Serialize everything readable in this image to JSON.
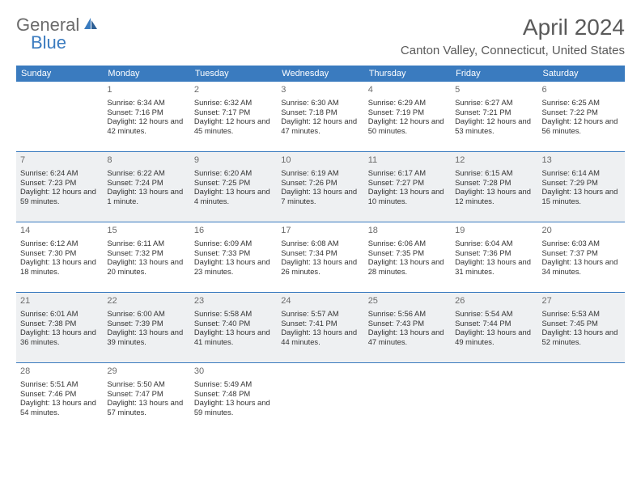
{
  "logo": {
    "part1": "General",
    "part2": "Blue"
  },
  "title": "April 2024",
  "location": "Canton Valley, Connecticut, United States",
  "colors": {
    "header_bg": "#3a7bbf",
    "header_text": "#ffffff",
    "shaded_bg": "#eef0f2",
    "border": "#3a7bbf",
    "body_text": "#333333",
    "title_text": "#5a5a5a",
    "logo_gray": "#6b6b6b",
    "logo_blue": "#3a7bbf"
  },
  "day_names": [
    "Sunday",
    "Monday",
    "Tuesday",
    "Wednesday",
    "Thursday",
    "Friday",
    "Saturday"
  ],
  "calendar_layout": {
    "weeks": 5,
    "first_weekday_index": 1,
    "days_in_month": 30
  },
  "days": {
    "1": {
      "sunrise": "6:34 AM",
      "sunset": "7:16 PM",
      "daylight": "12 hours and 42 minutes."
    },
    "2": {
      "sunrise": "6:32 AM",
      "sunset": "7:17 PM",
      "daylight": "12 hours and 45 minutes."
    },
    "3": {
      "sunrise": "6:30 AM",
      "sunset": "7:18 PM",
      "daylight": "12 hours and 47 minutes."
    },
    "4": {
      "sunrise": "6:29 AM",
      "sunset": "7:19 PM",
      "daylight": "12 hours and 50 minutes."
    },
    "5": {
      "sunrise": "6:27 AM",
      "sunset": "7:21 PM",
      "daylight": "12 hours and 53 minutes."
    },
    "6": {
      "sunrise": "6:25 AM",
      "sunset": "7:22 PM",
      "daylight": "12 hours and 56 minutes."
    },
    "7": {
      "sunrise": "6:24 AM",
      "sunset": "7:23 PM",
      "daylight": "12 hours and 59 minutes."
    },
    "8": {
      "sunrise": "6:22 AM",
      "sunset": "7:24 PM",
      "daylight": "13 hours and 1 minute."
    },
    "9": {
      "sunrise": "6:20 AM",
      "sunset": "7:25 PM",
      "daylight": "13 hours and 4 minutes."
    },
    "10": {
      "sunrise": "6:19 AM",
      "sunset": "7:26 PM",
      "daylight": "13 hours and 7 minutes."
    },
    "11": {
      "sunrise": "6:17 AM",
      "sunset": "7:27 PM",
      "daylight": "13 hours and 10 minutes."
    },
    "12": {
      "sunrise": "6:15 AM",
      "sunset": "7:28 PM",
      "daylight": "13 hours and 12 minutes."
    },
    "13": {
      "sunrise": "6:14 AM",
      "sunset": "7:29 PM",
      "daylight": "13 hours and 15 minutes."
    },
    "14": {
      "sunrise": "6:12 AM",
      "sunset": "7:30 PM",
      "daylight": "13 hours and 18 minutes."
    },
    "15": {
      "sunrise": "6:11 AM",
      "sunset": "7:32 PM",
      "daylight": "13 hours and 20 minutes."
    },
    "16": {
      "sunrise": "6:09 AM",
      "sunset": "7:33 PM",
      "daylight": "13 hours and 23 minutes."
    },
    "17": {
      "sunrise": "6:08 AM",
      "sunset": "7:34 PM",
      "daylight": "13 hours and 26 minutes."
    },
    "18": {
      "sunrise": "6:06 AM",
      "sunset": "7:35 PM",
      "daylight": "13 hours and 28 minutes."
    },
    "19": {
      "sunrise": "6:04 AM",
      "sunset": "7:36 PM",
      "daylight": "13 hours and 31 minutes."
    },
    "20": {
      "sunrise": "6:03 AM",
      "sunset": "7:37 PM",
      "daylight": "13 hours and 34 minutes."
    },
    "21": {
      "sunrise": "6:01 AM",
      "sunset": "7:38 PM",
      "daylight": "13 hours and 36 minutes."
    },
    "22": {
      "sunrise": "6:00 AM",
      "sunset": "7:39 PM",
      "daylight": "13 hours and 39 minutes."
    },
    "23": {
      "sunrise": "5:58 AM",
      "sunset": "7:40 PM",
      "daylight": "13 hours and 41 minutes."
    },
    "24": {
      "sunrise": "5:57 AM",
      "sunset": "7:41 PM",
      "daylight": "13 hours and 44 minutes."
    },
    "25": {
      "sunrise": "5:56 AM",
      "sunset": "7:43 PM",
      "daylight": "13 hours and 47 minutes."
    },
    "26": {
      "sunrise": "5:54 AM",
      "sunset": "7:44 PM",
      "daylight": "13 hours and 49 minutes."
    },
    "27": {
      "sunrise": "5:53 AM",
      "sunset": "7:45 PM",
      "daylight": "13 hours and 52 minutes."
    },
    "28": {
      "sunrise": "5:51 AM",
      "sunset": "7:46 PM",
      "daylight": "13 hours and 54 minutes."
    },
    "29": {
      "sunrise": "5:50 AM",
      "sunset": "7:47 PM",
      "daylight": "13 hours and 57 minutes."
    },
    "30": {
      "sunrise": "5:49 AM",
      "sunset": "7:48 PM",
      "daylight": "13 hours and 59 minutes."
    }
  },
  "labels": {
    "sunrise_prefix": "Sunrise: ",
    "sunset_prefix": "Sunset: ",
    "daylight_prefix": "Daylight: "
  }
}
